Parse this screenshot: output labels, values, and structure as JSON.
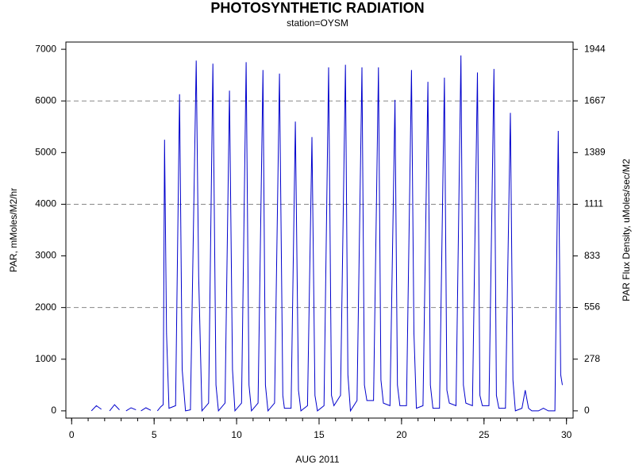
{
  "chart_data": {
    "type": "line",
    "title": "PHOTOSYNTHETIC RADIATION",
    "subtitle": "station=OYSM",
    "x_label": "AUG 2011",
    "y_label": "PAR, mMoles/M2/hr",
    "y2_label": "PAR Flux Density, uMoles/sec/M2",
    "xlim": [
      -0.35,
      30.4
    ],
    "ylim": [
      -140,
      7140
    ],
    "y2lim": [
      -38.9,
      1983.3
    ],
    "xticks": [
      0,
      5,
      10,
      15,
      20,
      25,
      30
    ],
    "xminorticks": [
      0,
      1,
      2,
      3,
      4,
      5,
      6,
      7,
      8,
      9,
      10,
      11,
      12,
      13,
      14,
      15,
      16,
      17,
      18,
      19,
      20,
      21,
      22,
      23,
      24,
      25,
      26,
      27,
      28,
      29,
      30
    ],
    "yticks": [
      0,
      1000,
      2000,
      3000,
      4000,
      5000,
      6000,
      7000
    ],
    "y2ticks": [
      0,
      278,
      556,
      833,
      1111,
      1389,
      1667,
      1944
    ],
    "ygrid": [
      2000,
      4000,
      6000
    ],
    "series": [
      {
        "color": "#0000cc",
        "x": [
          1.2,
          1.5,
          1.8,
          null,
          2.3,
          2.6,
          2.9,
          null,
          3.3,
          3.6,
          3.9,
          null,
          4.2,
          4.5,
          4.8,
          null,
          5.2,
          5.4,
          5.55,
          5.63,
          5.75,
          5.9,
          6.3,
          6.54,
          6.7,
          6.9,
          7.2,
          7.55,
          7.7,
          7.9,
          8.3,
          8.56,
          8.75,
          8.9,
          9.3,
          9.57,
          9.75,
          9.9,
          10.3,
          10.58,
          10.75,
          10.9,
          11.3,
          11.6,
          11.75,
          11.9,
          12.3,
          12.6,
          12.8,
          12.9,
          13.3,
          13.56,
          13.75,
          13.9,
          14.3,
          14.57,
          14.75,
          14.9,
          15.3,
          15.58,
          15.75,
          15.9,
          16.3,
          16.6,
          16.75,
          16.9,
          17.3,
          17.6,
          17.75,
          17.9,
          18.3,
          18.6,
          18.75,
          18.9,
          19.3,
          19.6,
          19.75,
          19.9,
          20.3,
          20.6,
          20.75,
          20.9,
          21.3,
          21.6,
          21.75,
          21.9,
          22.3,
          22.6,
          22.75,
          22.9,
          23.3,
          23.6,
          23.75,
          23.9,
          24.3,
          24.6,
          24.75,
          24.9,
          25.3,
          25.6,
          25.75,
          25.9,
          26.3,
          26.6,
          26.75,
          26.9,
          27.3,
          27.5,
          27.7,
          27.9,
          28.3,
          28.6,
          28.9,
          29.3,
          29.5,
          29.65,
          29.75
        ],
        "values": [
          0,
          100,
          30,
          null,
          0,
          120,
          20,
          null,
          0,
          60,
          20,
          null,
          0,
          60,
          10,
          null,
          0,
          80,
          120,
          5250,
          1500,
          50,
          100,
          6130,
          800,
          0,
          20,
          6780,
          2600,
          0,
          150,
          6720,
          500,
          0,
          150,
          6200,
          800,
          0,
          150,
          6750,
          500,
          0,
          150,
          6600,
          500,
          0,
          150,
          6530,
          300,
          50,
          50,
          5600,
          400,
          0,
          100,
          5300,
          300,
          0,
          100,
          6650,
          300,
          100,
          300,
          6700,
          700,
          0,
          200,
          6650,
          500,
          200,
          200,
          6650,
          600,
          150,
          100,
          6020,
          500,
          100,
          100,
          6600,
          1500,
          50,
          100,
          6370,
          500,
          50,
          50,
          6450,
          400,
          150,
          100,
          6880,
          500,
          150,
          100,
          6550,
          300,
          100,
          100,
          6620,
          300,
          50,
          50,
          5770,
          600,
          0,
          50,
          400,
          50,
          0,
          0,
          50,
          0,
          0,
          5420,
          700,
          500
        ]
      }
    ]
  }
}
